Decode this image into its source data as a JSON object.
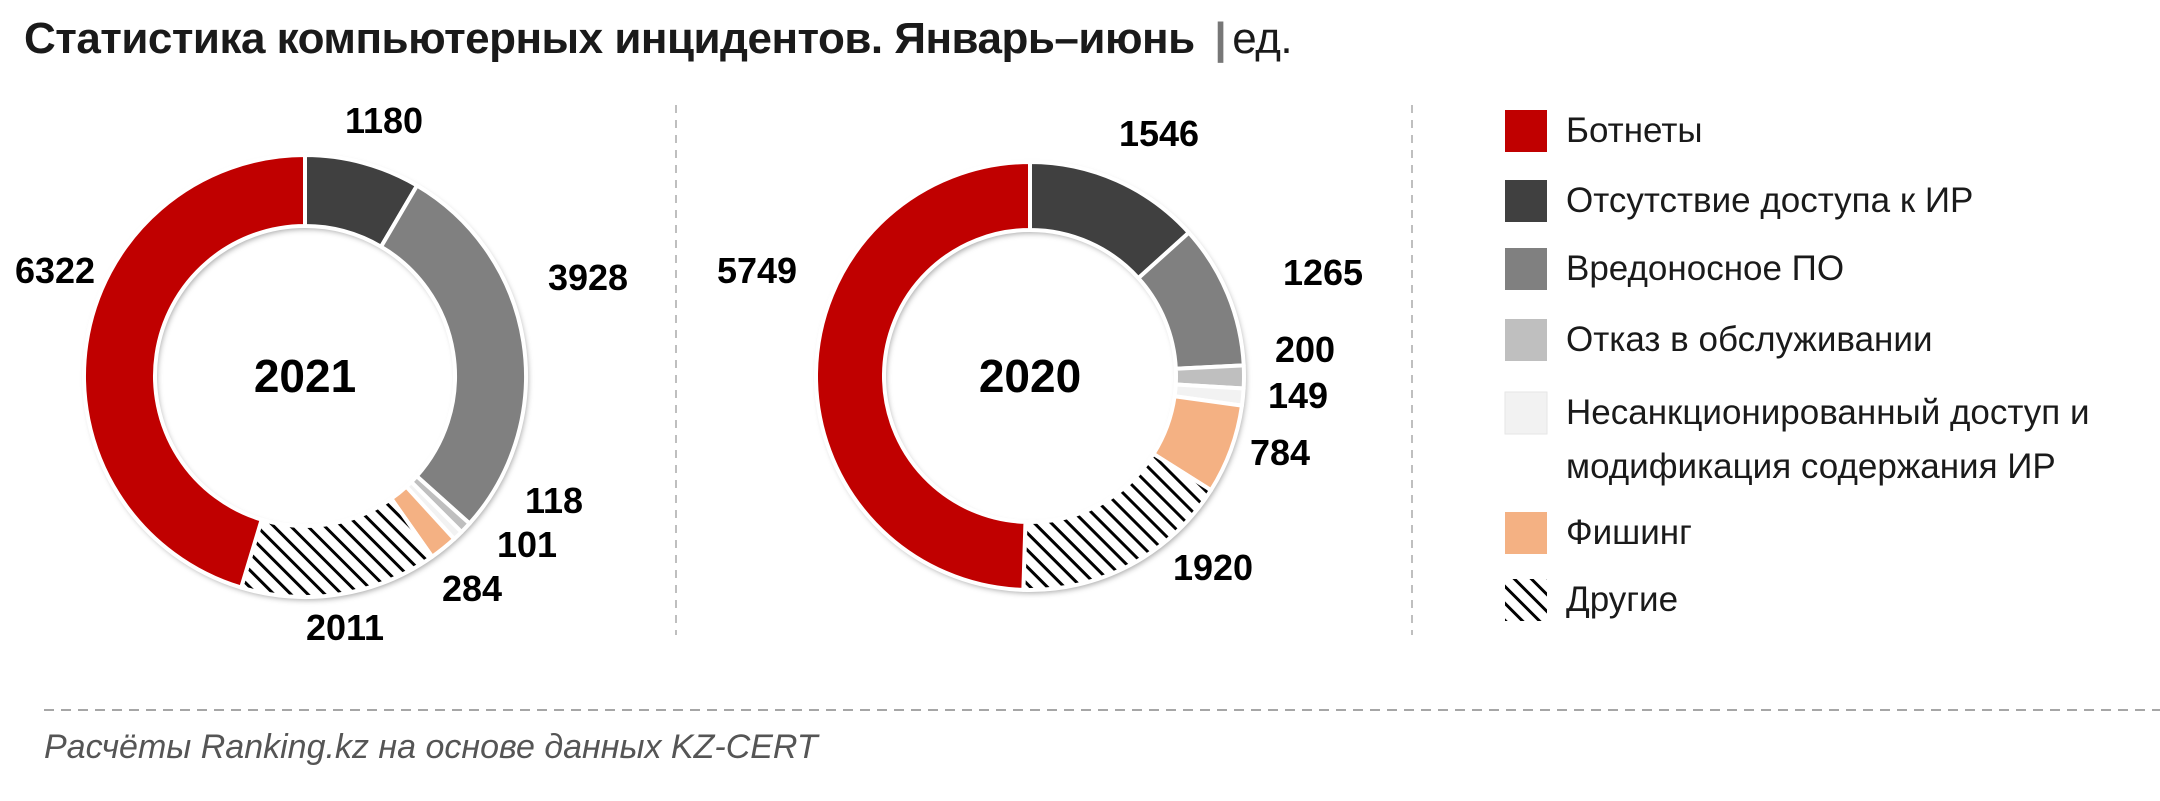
{
  "title": {
    "main": "Статистика компьютерных инцидентов. Январь–июнь",
    "separator": "|",
    "unit": "ед."
  },
  "colors": {
    "botnets": "#c00000",
    "no_access": "#404040",
    "malware": "#808080",
    "dos": "#bfbfbf",
    "unauthorized": "#f2f2f2",
    "phishing": "#f4b183",
    "other": "hatch-black-white"
  },
  "legend": [
    {
      "key": "botnets",
      "label_lines": [
        "Ботнеты"
      ]
    },
    {
      "key": "no_access",
      "label_lines": [
        "Отсутствие доступа к ИР"
      ]
    },
    {
      "key": "malware",
      "label_lines": [
        "Вредоносное ПО"
      ]
    },
    {
      "key": "dos",
      "label_lines": [
        "Отказ в обслуживании"
      ]
    },
    {
      "key": "unauthorized",
      "label_lines": [
        "Несанкционированный доступ и",
        "модификация содержания ИР"
      ]
    },
    {
      "key": "phishing",
      "label_lines": [
        "Фишинг"
      ]
    },
    {
      "key": "other",
      "label_lines": [
        "Другие"
      ]
    }
  ],
  "chart_data": [
    {
      "type": "donut",
      "center_label": "2021",
      "categories": [
        "Ботнеты",
        "Отсутствие доступа к ИР",
        "Вредоносное ПО",
        "Отказ в обслуживании",
        "Несанкционированный доступ и модификация содержания ИР",
        "Фишинг",
        "Другие"
      ],
      "keys": [
        "botnets",
        "no_access",
        "malware",
        "dos",
        "unauthorized",
        "phishing",
        "other"
      ],
      "values": [
        6322,
        1180,
        3928,
        118,
        101,
        284,
        2011
      ]
    },
    {
      "type": "donut",
      "center_label": "2020",
      "categories": [
        "Ботнеты",
        "Отсутствие доступа к ИР",
        "Вредоносное ПО",
        "Отказ в обслуживании",
        "Несанкционированный доступ и модификация содержания ИР",
        "Фишинг",
        "Другие"
      ],
      "keys": [
        "botnets",
        "no_access",
        "malware",
        "dos",
        "unauthorized",
        "phishing",
        "other"
      ],
      "values": [
        5749,
        1546,
        1265,
        200,
        149,
        784,
        1920
      ]
    }
  ],
  "source": "Расчёты Ranking.kz на основе данных KZ-CERT"
}
